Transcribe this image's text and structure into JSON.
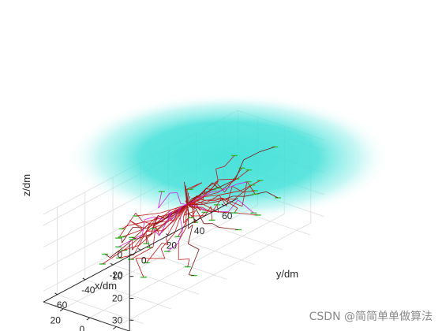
{
  "chart_data": {
    "type": "line3d",
    "title": "",
    "xlabel": "x/dm",
    "ylabel": "y/dm",
    "zlabel": "z/dm",
    "xlim": [
      -30,
      35
    ],
    "ylim": [
      -70,
      70
    ],
    "zlim": [
      -5,
      35
    ],
    "z_reversed": true,
    "grid": true,
    "x_ticks": [
      -20,
      0,
      20
    ],
    "y_ticks": [
      -60,
      -40,
      -20,
      0,
      20,
      40,
      60
    ],
    "z_ticks": [
      0,
      10,
      20,
      30
    ],
    "x_tick_labels": [
      "-20",
      "0",
      "20"
    ],
    "y_tick_labels": [
      "-60",
      "-40",
      "-20",
      "0",
      "20",
      "40",
      "60"
    ],
    "z_tick_labels": [
      "0",
      "10",
      "20",
      "30"
    ],
    "colors": {
      "path": "#c01818",
      "path_dark": "#7a1010",
      "magenta_path": "#d020e0",
      "sphere": "#40e0d8",
      "start_marker": "#30c030",
      "grid": "#dcdcdc",
      "axis": "#262626"
    }
  },
  "watermark": "CSDN @简简单单做算法"
}
